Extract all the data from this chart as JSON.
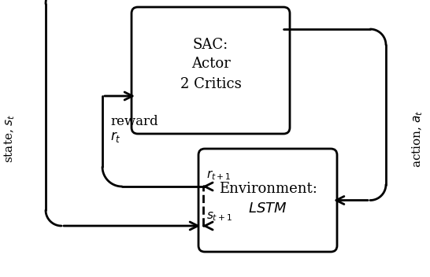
{
  "bg_color": "#ffffff",
  "box_edge_color": "#000000",
  "line_color": "#000000",
  "sac_text": "SAC:\nActor\n2 Critics",
  "env_text": "Environment:\n$\\it{LSTM}$",
  "state_label": "state, $s_t$",
  "action_label": "action, $a_t$",
  "reward_label": "reward\n$r_t$",
  "r_next_label": "$r_{t+1}$",
  "s_next_label": "$s_{t+1}$"
}
